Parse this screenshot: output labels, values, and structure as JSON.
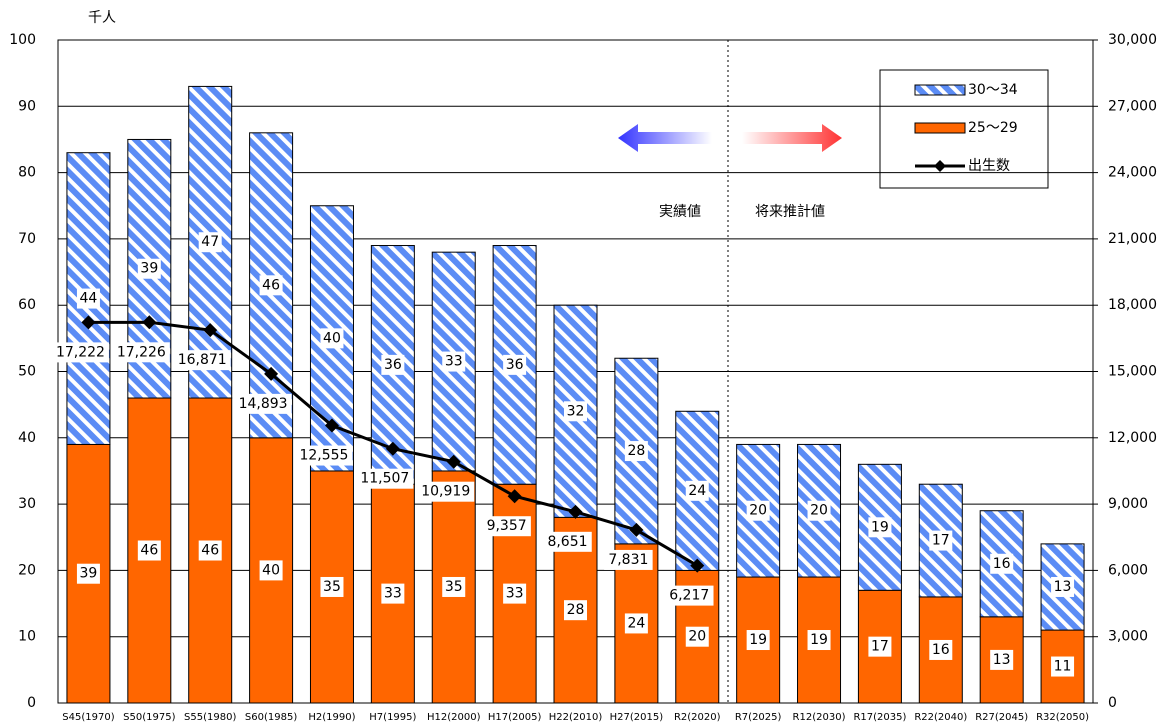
{
  "chart_data": {
    "type": "bar",
    "stacked": true,
    "y_label": "千人",
    "annotations": [
      "実績値",
      "将来推計値"
    ],
    "categories": [
      "S45(1970)",
      "S50(1975)",
      "S55(1980)",
      "S60(1985)",
      "H2(1990)",
      "H7(1995)",
      "H12(2000)",
      "H17(2005)",
      "H22(2010)",
      "H27(2015)",
      "R2(2020)",
      "R7(2025)",
      "R12(2030)",
      "R17(2035)",
      "R22(2040)",
      "R27(2045)",
      "R32(2050)"
    ],
    "series": [
      {
        "name": "25～29",
        "type": "bar",
        "color": "#ff6600",
        "values": [
          39,
          46,
          46,
          40,
          35,
          33,
          35,
          33,
          28,
          24,
          20,
          19,
          19,
          17,
          16,
          13,
          11
        ]
      },
      {
        "name": "30～34",
        "type": "bar",
        "color": "#5b8cf5",
        "hatch": true,
        "values": [
          44,
          39,
          47,
          46,
          40,
          36,
          33,
          36,
          32,
          28,
          24,
          20,
          20,
          19,
          17,
          16,
          13
        ]
      },
      {
        "name": "出生数",
        "type": "line",
        "axis": "y2",
        "color": "#000000",
        "values": [
          17222,
          17226,
          16871,
          14893,
          12555,
          11507,
          10919,
          9357,
          8651,
          7831,
          6217,
          null,
          null,
          null,
          null,
          null,
          null
        ],
        "value_labels": [
          "17,222",
          "17,226",
          "16,871",
          "14,893",
          "12,555",
          "11,507",
          "10,919",
          "9,357",
          "8,651",
          "7,831",
          "6,217",
          null,
          null,
          null,
          null,
          null,
          null
        ]
      }
    ],
    "legend_order": [
      1,
      0,
      2
    ],
    "ylim": [
      0,
      100
    ],
    "yticks": [
      0,
      10,
      20,
      30,
      40,
      50,
      60,
      70,
      80,
      90,
      100
    ],
    "y2lim": [
      0,
      30000
    ],
    "y2ticks": [
      0,
      {
        "value": 3000,
        "label": "3,000"
      },
      {
        "value": 6000,
        "label": "6,000"
      },
      {
        "value": 9000,
        "label": "9,000"
      },
      {
        "value": 12000,
        "label": "12,000"
      },
      {
        "value": 15000,
        "label": "15,000"
      },
      {
        "value": 18000,
        "label": "18,000"
      },
      {
        "value": 21000,
        "label": "21,000"
      },
      {
        "value": 24000,
        "label": "24,000"
      },
      {
        "value": 27000,
        "label": "27,000"
      },
      {
        "value": 30000,
        "label": "30,000"
      }
    ],
    "grid": true
  }
}
